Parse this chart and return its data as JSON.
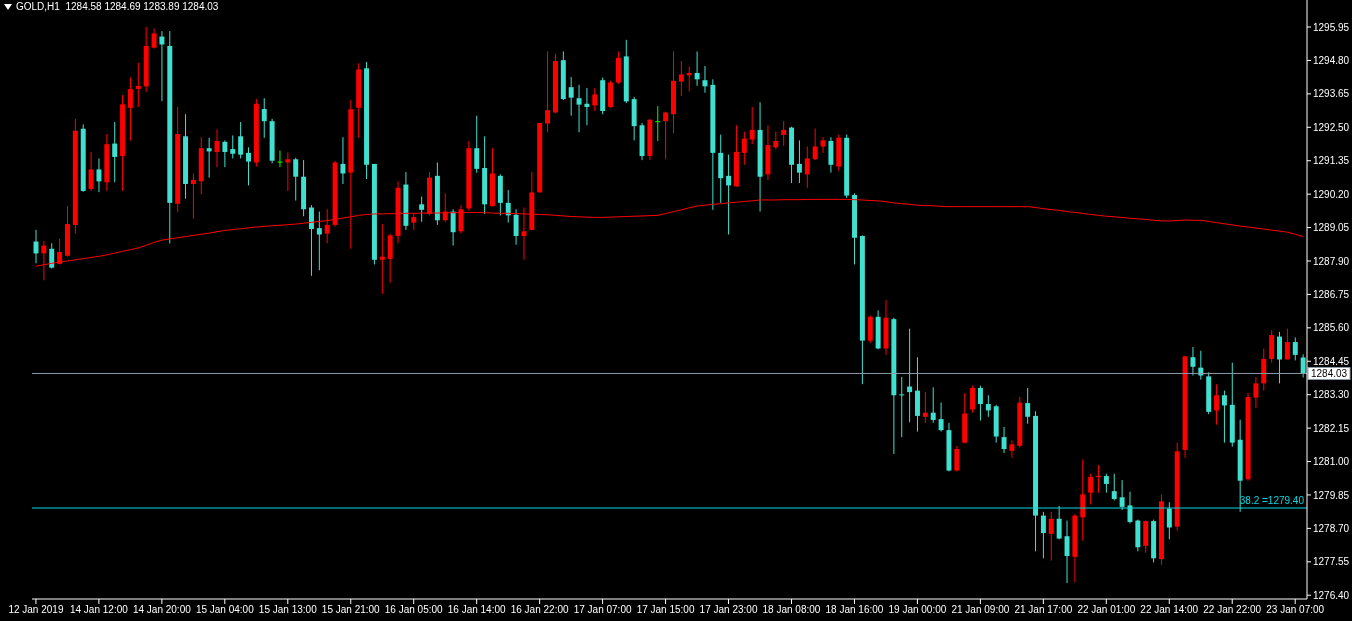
{
  "chart_data": {
    "type": "candlestick",
    "title": "GOLD,H1  1284.58 1284.69 1283.89 1284.03",
    "categories": [
      "12 Jan 2019",
      null,
      null,
      null,
      null,
      null,
      null,
      null,
      "14 Jan 12:00",
      null,
      null,
      null,
      null,
      null,
      null,
      null,
      "14 Jan 20:00",
      null,
      null,
      null,
      null,
      null,
      null,
      null,
      "15 Jan 04:00",
      null,
      null,
      null,
      null,
      null,
      null,
      null,
      "15 Jan 13:00",
      null,
      null,
      null,
      null,
      null,
      null,
      null,
      "15 Jan 21:00",
      null,
      null,
      null,
      null,
      null,
      null,
      null,
      "16 Jan 05:00",
      null,
      null,
      null,
      null,
      null,
      null,
      null,
      "16 Jan 14:00",
      null,
      null,
      null,
      null,
      null,
      null,
      null,
      "16 Jan 22:00",
      null,
      null,
      null,
      null,
      null,
      null,
      null,
      "17 Jan 07:00",
      null,
      null,
      null,
      null,
      null,
      null,
      null,
      "17 Jan 15:00",
      null,
      null,
      null,
      null,
      null,
      null,
      null,
      "17 Jan 23:00",
      null,
      null,
      null,
      null,
      null,
      null,
      null,
      "18 Jan 08:00",
      null,
      null,
      null,
      null,
      null,
      null,
      null,
      "18 Jan 16:00",
      null,
      null,
      null,
      null,
      null,
      null,
      null,
      "19 Jan 00:00",
      null,
      null,
      null,
      null,
      null,
      null,
      null,
      "21 Jan 09:00",
      null,
      null,
      null,
      null,
      null,
      null,
      null,
      "21 Jan 17:00",
      null,
      null,
      null,
      null,
      null,
      null,
      null,
      "22 Jan 01:00",
      null,
      null,
      null,
      null,
      null,
      null,
      null,
      "22 Jan 14:00",
      null,
      null,
      null,
      null,
      null,
      null,
      null,
      "22 Jan 22:00",
      null,
      null,
      null,
      null,
      null,
      null,
      null,
      "23 Jan 07:00",
      null
    ],
    "ohlc": [
      [
        1288.57,
        1288.97,
        1287.82,
        1288.16
      ],
      [
        1288.16,
        1288.59,
        1287.23,
        1288.43
      ],
      [
        1288.32,
        1288.51,
        1287.64,
        1287.67
      ],
      [
        1287.8,
        1288.67,
        1287.78,
        1288.21
      ],
      [
        1288.08,
        1289.79,
        1288.05,
        1289.17
      ],
      [
        1289.14,
        1292.79,
        1288.84,
        1292.38
      ],
      [
        1292.45,
        1292.6,
        1290.28,
        1290.31
      ],
      [
        1290.38,
        1291.65,
        1290.31,
        1291.05
      ],
      [
        1291.05,
        1291.43,
        1290.27,
        1290.64
      ],
      [
        1290.61,
        1292.27,
        1290.31,
        1291.92
      ],
      [
        1291.94,
        1292.68,
        1290.61,
        1291.48
      ],
      [
        1291.51,
        1293.61,
        1290.31,
        1293.29
      ],
      [
        1293.17,
        1294.22,
        1292.04,
        1293.81
      ],
      [
        1293.82,
        1294.72,
        1293.2,
        1293.92
      ],
      [
        1293.91,
        1295.95,
        1293.72,
        1295.3
      ],
      [
        1295.24,
        1295.9,
        1295.21,
        1295.73
      ],
      [
        1295.62,
        1295.81,
        1293.4,
        1295.35
      ],
      [
        1295.3,
        1295.81,
        1288.5,
        1289.9
      ],
      [
        1289.87,
        1293.2,
        1289.59,
        1292.27
      ],
      [
        1292.19,
        1292.95,
        1290.04,
        1290.55
      ],
      [
        1290.55,
        1290.91,
        1289.36,
        1290.69
      ],
      [
        1290.64,
        1292.16,
        1290.2,
        1291.78
      ],
      [
        1291.78,
        1292.14,
        1290.77,
        1291.67
      ],
      [
        1291.65,
        1292.43,
        1291.13,
        1292.03
      ],
      [
        1292.0,
        1292.05,
        1291.13,
        1291.65
      ],
      [
        1291.75,
        1292.22,
        1291.43,
        1291.59
      ],
      [
        1292.19,
        1292.68,
        1291.43,
        1291.56
      ],
      [
        1291.62,
        1291.81,
        1290.5,
        1291.32
      ],
      [
        1291.29,
        1293.47,
        1291.15,
        1293.31
      ],
      [
        1293.13,
        1293.5,
        1292.14,
        1292.71
      ],
      [
        1292.71,
        1292.79,
        1291.26,
        1291.35
      ],
      [
        1291.32,
        1291.7,
        1291.13,
        1291.32
      ],
      [
        1291.29,
        1291.64,
        1290.31,
        1291.4
      ],
      [
        1291.4,
        1291.45,
        1289.98,
        1290.8
      ],
      [
        1290.8,
        1291.37,
        1289.44,
        1289.68
      ],
      [
        1289.74,
        1289.82,
        1287.39,
        1289.0
      ],
      [
        1289.03,
        1289.6,
        1287.58,
        1288.81
      ],
      [
        1288.84,
        1289.68,
        1288.51,
        1289.14
      ],
      [
        1289.14,
        1291.35,
        1289.08,
        1291.29
      ],
      [
        1291.24,
        1292.16,
        1290.55,
        1290.91
      ],
      [
        1290.94,
        1293.44,
        1288.32,
        1293.12
      ],
      [
        1293.17,
        1294.7,
        1292.14,
        1294.49
      ],
      [
        1294.53,
        1294.75,
        1290.72,
        1291.21
      ],
      [
        1291.24,
        1291.24,
        1287.78,
        1287.94
      ],
      [
        1287.94,
        1289.17,
        1286.77,
        1288.05
      ],
      [
        1287.97,
        1288.84,
        1287.15,
        1288.78
      ],
      [
        1288.76,
        1290.64,
        1288.51,
        1290.42
      ],
      [
        1290.53,
        1290.96,
        1288.97,
        1289.11
      ],
      [
        1289.22,
        1289.55,
        1288.97,
        1289.41
      ],
      [
        1289.85,
        1290.12,
        1289.25,
        1289.66
      ],
      [
        1289.52,
        1290.96,
        1289.47,
        1290.77
      ],
      [
        1290.83,
        1291.29,
        1289.14,
        1289.3
      ],
      [
        1289.3,
        1290.23,
        1289.25,
        1289.6
      ],
      [
        1289.6,
        1289.68,
        1288.43,
        1288.89
      ],
      [
        1288.92,
        1289.82,
        1288.84,
        1289.68
      ],
      [
        1289.71,
        1292.03,
        1289.63,
        1291.78
      ],
      [
        1291.78,
        1292.9,
        1290.94,
        1291.07
      ],
      [
        1291.1,
        1292.19,
        1289.52,
        1289.85
      ],
      [
        1289.79,
        1291.78,
        1289.77,
        1290.91
      ],
      [
        1290.83,
        1290.88,
        1289.47,
        1289.9
      ],
      [
        1289.9,
        1290.34,
        1289.22,
        1289.47
      ],
      [
        1289.49,
        1289.68,
        1288.46,
        1288.76
      ],
      [
        1288.76,
        1289.74,
        1287.94,
        1288.92
      ],
      [
        1288.97,
        1290.96,
        1288.95,
        1290.26
      ],
      [
        1290.26,
        1292.65,
        1290.26,
        1292.65
      ],
      [
        1292.63,
        1295.11,
        1292.33,
        1293.09
      ],
      [
        1293.01,
        1295.03,
        1292.98,
        1294.78
      ],
      [
        1294.81,
        1295.11,
        1293.44,
        1293.47
      ],
      [
        1293.88,
        1294.23,
        1292.9,
        1293.52
      ],
      [
        1293.5,
        1293.96,
        1292.33,
        1293.28
      ],
      [
        1293.31,
        1293.85,
        1292.57,
        1293.2
      ],
      [
        1293.25,
        1293.85,
        1293.06,
        1293.63
      ],
      [
        1294.12,
        1294.21,
        1292.95,
        1293.06
      ],
      [
        1293.2,
        1294.1,
        1293.17,
        1294.04
      ],
      [
        1294.04,
        1295.11,
        1293.99,
        1294.89
      ],
      [
        1294.94,
        1295.51,
        1293.33,
        1293.39
      ],
      [
        1293.47,
        1293.55,
        1292.05,
        1292.54
      ],
      [
        1292.57,
        1292.65,
        1291.37,
        1291.51
      ],
      [
        1291.51,
        1292.79,
        1291.37,
        1292.76
      ],
      [
        1292.71,
        1293.23,
        1292.03,
        1292.71
      ],
      [
        1292.71,
        1293.04,
        1291.4,
        1293.01
      ],
      [
        1292.95,
        1295.11,
        1292.3,
        1294.1
      ],
      [
        1294.07,
        1294.78,
        1293.58,
        1294.32
      ],
      [
        1294.29,
        1294.59,
        1293.74,
        1294.37
      ],
      [
        1294.37,
        1295.11,
        1293.93,
        1294.15
      ],
      [
        1294.12,
        1294.61,
        1293.69,
        1293.91
      ],
      [
        1293.96,
        1294.15,
        1289.66,
        1291.62
      ],
      [
        1291.62,
        1292.25,
        1289.9,
        1290.75
      ],
      [
        1290.83,
        1291.56,
        1288.81,
        1290.5
      ],
      [
        1290.47,
        1292.57,
        1290.45,
        1291.65
      ],
      [
        1291.62,
        1292.35,
        1291.21,
        1292.11
      ],
      [
        1292.08,
        1293.2,
        1291.92,
        1292.41
      ],
      [
        1292.41,
        1293.36,
        1289.6,
        1290.8
      ],
      [
        1290.88,
        1292.57,
        1290.69,
        1291.89
      ],
      [
        1291.81,
        1292.35,
        1291.75,
        1292.03
      ],
      [
        1292.24,
        1292.71,
        1291.86,
        1292.41
      ],
      [
        1292.49,
        1292.52,
        1290.58,
        1291.21
      ],
      [
        1291.24,
        1292.05,
        1290.58,
        1290.94
      ],
      [
        1290.88,
        1291.84,
        1290.42,
        1291.43
      ],
      [
        1291.4,
        1292.46,
        1291.37,
        1291.84
      ],
      [
        1291.84,
        1292.16,
        1291.62,
        1292.05
      ],
      [
        1292.03,
        1292.16,
        1290.94,
        1291.21
      ],
      [
        1291.15,
        1292.25,
        1290.99,
        1292.14
      ],
      [
        1292.14,
        1292.25,
        1290.07,
        1290.15
      ],
      [
        1290.17,
        1290.23,
        1287.78,
        1288.7
      ],
      [
        1288.76,
        1288.78,
        1283.66,
        1285.16
      ],
      [
        1285.16,
        1286.02,
        1285.08,
        1285.98
      ],
      [
        1285.98,
        1286.2,
        1284.86,
        1284.89
      ],
      [
        1284.89,
        1286.55,
        1284.67,
        1285.95
      ],
      [
        1285.9,
        1285.95,
        1281.26,
        1283.28
      ],
      [
        1283.31,
        1283.91,
        1281.84,
        1283.28
      ],
      [
        1283.58,
        1285.57,
        1282.35,
        1283.39
      ],
      [
        1283.44,
        1284.59,
        1282.03,
        1282.57
      ],
      [
        1282.54,
        1283.39,
        1282.33,
        1282.68
      ],
      [
        1282.68,
        1283.55,
        1282.33,
        1282.43
      ],
      [
        1282.46,
        1283.03,
        1282.03,
        1282.08
      ],
      [
        1282.08,
        1282.33,
        1280.66,
        1280.69
      ],
      [
        1280.69,
        1281.54,
        1280.66,
        1281.43
      ],
      [
        1281.65,
        1283.36,
        1281.62,
        1282.65
      ],
      [
        1282.79,
        1283.61,
        1282.68,
        1283.53
      ],
      [
        1283.53,
        1283.61,
        1282.41,
        1282.98
      ],
      [
        1282.98,
        1283.28,
        1282.54,
        1282.76
      ],
      [
        1282.9,
        1282.95,
        1281.65,
        1281.86
      ],
      [
        1281.84,
        1282.19,
        1281.29,
        1281.43
      ],
      [
        1281.37,
        1281.73,
        1281.13,
        1281.59
      ],
      [
        1281.54,
        1283.22,
        1281.48,
        1283.03
      ],
      [
        1283.01,
        1283.53,
        1282.3,
        1282.54
      ],
      [
        1282.57,
        1282.73,
        1277.91,
        1279.14
      ],
      [
        1279.14,
        1279.27,
        1277.67,
        1278.54
      ],
      [
        1278.51,
        1279.27,
        1277.59,
        1279.03
      ],
      [
        1279.03,
        1279.47,
        1278.32,
        1278.35
      ],
      [
        1278.43,
        1278.97,
        1276.82,
        1277.75
      ],
      [
        1277.72,
        1279.19,
        1276.85,
        1279.14
      ],
      [
        1279.08,
        1281.07,
        1278.27,
        1279.87
      ],
      [
        1279.93,
        1280.58,
        1279.52,
        1280.47
      ],
      [
        1280.47,
        1280.88,
        1279.93,
        1280.5
      ],
      [
        1280.5,
        1280.58,
        1279.93,
        1280.23
      ],
      [
        1279.98,
        1280.58,
        1279.66,
        1279.71
      ],
      [
        1279.77,
        1280.36,
        1279.33,
        1279.44
      ],
      [
        1279.49,
        1279.96,
        1278.87,
        1278.92
      ],
      [
        1278.97,
        1279.0,
        1277.91,
        1278.05
      ],
      [
        1278.1,
        1278.97,
        1277.86,
        1278.95
      ],
      [
        1278.95,
        1279.0,
        1277.53,
        1277.67
      ],
      [
        1277.64,
        1279.87,
        1277.45,
        1279.63
      ],
      [
        1279.38,
        1279.6,
        1278.32,
        1278.73
      ],
      [
        1278.76,
        1281.65,
        1278.62,
        1281.35
      ],
      [
        1281.4,
        1284.64,
        1281.13,
        1284.62
      ],
      [
        1284.59,
        1284.94,
        1283.96,
        1284.26
      ],
      [
        1284.23,
        1284.81,
        1283.82,
        1283.96
      ],
      [
        1283.93,
        1284.07,
        1282.63,
        1282.71
      ],
      [
        1282.76,
        1283.66,
        1282.27,
        1283.28
      ],
      [
        1283.28,
        1283.44,
        1281.65,
        1282.93
      ],
      [
        1282.95,
        1284.4,
        1281.51,
        1281.65
      ],
      [
        1281.75,
        1282.44,
        1279.27,
        1280.34
      ],
      [
        1280.39,
        1283.36,
        1280.34,
        1283.22
      ],
      [
        1283.2,
        1283.91,
        1282.84,
        1283.69
      ],
      [
        1283.69,
        1284.89,
        1283.44,
        1284.53
      ],
      [
        1284.53,
        1285.51,
        1284.4,
        1285.35
      ],
      [
        1285.3,
        1285.46,
        1283.69,
        1284.51
      ],
      [
        1284.51,
        1285.57,
        1284.51,
        1285.11
      ],
      [
        1285.11,
        1285.27,
        1284.48,
        1284.67
      ],
      [
        1284.58,
        1284.69,
        1283.89,
        1284.03
      ]
    ],
    "colors": [
      "#40e0d0",
      "#ff0000",
      "#40e0d0",
      "#ff0000",
      "#ff0000",
      "#ff0000",
      "#40e0d0",
      "#ff0000",
      "#40e0d0",
      "#ff0000",
      "#40e0d0",
      "#ff0000",
      "#ff0000",
      "#ff0000",
      "#ff0000",
      "#ff0000",
      "#40e0d0",
      "#40e0d0",
      "#ff0000",
      "#40e0d0",
      "#ff0000",
      "#ff0000",
      "#40e0d0",
      "#ff0000",
      "#40e0d0",
      "#40e0d0",
      "#40e0d0",
      "#40e0d0",
      "#ff0000",
      "#40e0d0",
      "#40e0d0",
      "#00ff00",
      "#ff0000",
      "#40e0d0",
      "#40e0d0",
      "#40e0d0",
      "#40e0d0",
      "#ff0000",
      "#ff0000",
      "#40e0d0",
      "#ff0000",
      "#ff0000",
      "#40e0d0",
      "#40e0d0",
      "#ff0000",
      "#ff0000",
      "#ff0000",
      "#40e0d0",
      "#ff0000",
      "#40e0d0",
      "#ff0000",
      "#40e0d0",
      "#ff0000",
      "#40e0d0",
      "#ff0000",
      "#ff0000",
      "#40e0d0",
      "#40e0d0",
      "#ff0000",
      "#40e0d0",
      "#40e0d0",
      "#40e0d0",
      "#ff0000",
      "#ff0000",
      "#ff0000",
      "#ff0000",
      "#ff0000",
      "#40e0d0",
      "#40e0d0",
      "#40e0d0",
      "#40e0d0",
      "#ff0000",
      "#40e0d0",
      "#ff0000",
      "#ff0000",
      "#40e0d0",
      "#40e0d0",
      "#40e0d0",
      "#ff0000",
      "#00ff00",
      "#ff0000",
      "#ff0000",
      "#ff0000",
      "#ff0000",
      "#40e0d0",
      "#40e0d0",
      "#40e0d0",
      "#40e0d0",
      "#40e0d0",
      "#ff0000",
      "#ff0000",
      "#ff0000",
      "#40e0d0",
      "#ff0000",
      "#ff0000",
      "#ff0000",
      "#40e0d0",
      "#40e0d0",
      "#ff0000",
      "#ff0000",
      "#ff0000",
      "#40e0d0",
      "#ff0000",
      "#40e0d0",
      "#40e0d0",
      "#40e0d0",
      "#ff0000",
      "#40e0d0",
      "#ff0000",
      "#40e0d0",
      "#40e0d0",
      "#40e0d0",
      "#40e0d0",
      "#ff0000",
      "#40e0d0",
      "#40e0d0",
      "#40e0d0",
      "#ff0000",
      "#ff0000",
      "#ff0000",
      "#40e0d0",
      "#40e0d0",
      "#40e0d0",
      "#40e0d0",
      "#ff0000",
      "#ff0000",
      "#40e0d0",
      "#40e0d0",
      "#40e0d0",
      "#ff0000",
      "#40e0d0",
      "#40e0d0",
      "#ff0000",
      "#ff0000",
      "#ff0000",
      "#ff0000",
      "#40e0d0",
      "#40e0d0",
      "#40e0d0",
      "#40e0d0",
      "#40e0d0",
      "#ff0000",
      "#40e0d0",
      "#ff0000",
      "#40e0d0",
      "#ff0000",
      "#ff0000",
      "#40e0d0",
      "#40e0d0",
      "#40e0d0",
      "#ff0000",
      "#40e0d0",
      "#40e0d0",
      "#40e0d0",
      "#ff0000",
      "#ff0000",
      "#ff0000",
      "#ff0000",
      "#40e0d0",
      "#ff0000",
      "#40e0d0",
      "#40e0d0"
    ],
    "series": [
      {
        "type": "line",
        "color": "#ff0000",
        "values": [
          1287.72,
          1287.77,
          1287.82,
          1287.86,
          1287.9,
          1287.94,
          1287.98,
          1288.02,
          1288.06,
          1288.11,
          1288.17,
          1288.23,
          1288.29,
          1288.35,
          1288.44,
          1288.54,
          1288.62,
          1288.66,
          1288.7,
          1288.74,
          1288.78,
          1288.82,
          1288.86,
          1288.91,
          1288.95,
          1288.98,
          1289.01,
          1289.04,
          1289.07,
          1289.09,
          1289.11,
          1289.13,
          1289.15,
          1289.17,
          1289.2,
          1289.23,
          1289.26,
          1289.29,
          1289.33,
          1289.38,
          1289.42,
          1289.47,
          1289.5,
          1289.52,
          1289.52,
          1289.53,
          1289.53,
          1289.54,
          1289.54,
          1289.55,
          1289.55,
          1289.55,
          1289.56,
          1289.56,
          1289.56,
          1289.57,
          1289.57,
          1289.56,
          1289.55,
          1289.54,
          1289.54,
          1289.53,
          1289.52,
          1289.51,
          1289.5,
          1289.49,
          1289.47,
          1289.45,
          1289.43,
          1289.42,
          1289.41,
          1289.4,
          1289.4,
          1289.41,
          1289.42,
          1289.43,
          1289.44,
          1289.45,
          1289.46,
          1289.47,
          1289.53,
          1289.6,
          1289.66,
          1289.73,
          1289.79,
          1289.82,
          1289.85,
          1289.87,
          1289.9,
          1289.92,
          1289.95,
          1289.97,
          1290.0,
          1290.0,
          1290.0,
          1290.01,
          1290.01,
          1290.01,
          1290.02,
          1290.02,
          1290.02,
          1290.02,
          1290.02,
          1290.02,
          1290.01,
          1290.0,
          1289.98,
          1289.97,
          1289.94,
          1289.9,
          1289.87,
          1289.85,
          1289.82,
          1289.81,
          1289.8,
          1289.78,
          1289.77,
          1289.77,
          1289.77,
          1289.77,
          1289.77,
          1289.77,
          1289.77,
          1289.77,
          1289.77,
          1289.77,
          1289.77,
          1289.74,
          1289.7,
          1289.67,
          1289.64,
          1289.6,
          1289.57,
          1289.54,
          1289.5,
          1289.47,
          1289.44,
          1289.42,
          1289.4,
          1289.37,
          1289.35,
          1289.33,
          1289.3,
          1289.28,
          1289.28,
          1289.29,
          1289.31,
          1289.3,
          1289.3,
          1289.26,
          1289.22,
          1289.18,
          1289.14,
          1289.1,
          1289.07,
          1289.03,
          1289.0,
          1288.96,
          1288.93,
          1288.89,
          1288.82,
          1288.74
        ]
      }
    ],
    "ylim": [
      1276.27,
      1296.88
    ],
    "yticks": [
      {
        "value": 1276.4,
        "label": "1276.40"
      },
      {
        "value": 1277.55,
        "label": "1277.55"
      },
      {
        "value": 1278.7,
        "label": "1278.70"
      },
      {
        "value": 1279.85,
        "label": "1279.85"
      },
      {
        "value": 1281.0,
        "label": "1281.00"
      },
      {
        "value": 1282.15,
        "label": "1282.15"
      },
      {
        "value": 1283.3,
        "label": "1283.30"
      },
      {
        "value": 1284.45,
        "label": "1284.45"
      },
      {
        "value": 1285.6,
        "label": "1285.60"
      },
      {
        "value": 1286.75,
        "label": "1286.75"
      },
      {
        "value": 1287.9,
        "label": "1287.90"
      },
      {
        "value": 1289.05,
        "label": "1289.05"
      },
      {
        "value": 1290.2,
        "label": "1290.20"
      },
      {
        "value": 1291.35,
        "label": "1291.35"
      },
      {
        "value": 1292.5,
        "label": "1292.50"
      },
      {
        "value": 1293.65,
        "label": "1293.65"
      },
      {
        "value": 1294.8,
        "label": "1294.80"
      },
      {
        "value": 1295.95,
        "label": "1295.95"
      }
    ],
    "ref_lines": [
      {
        "axis": "y",
        "value": 1284.03,
        "label": "1284.03",
        "color": "#8c9aa8"
      },
      {
        "axis": "y",
        "value": 1279.4,
        "label": "38.2 =1279.40",
        "color": "#00d8e0"
      }
    ]
  }
}
